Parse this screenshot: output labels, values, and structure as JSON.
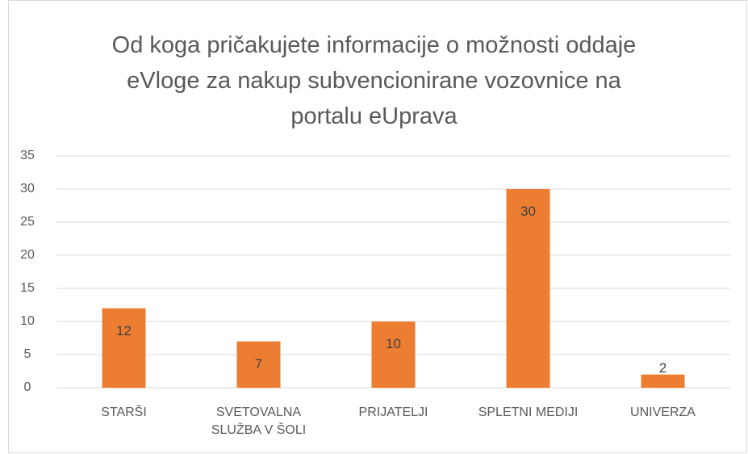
{
  "chart_data": {
    "type": "bar",
    "title": "Od koga pričakujete informacije o možnosti oddaje eVloge za nakup subvencionirane vozovnice na portalu eUprava",
    "categories": [
      "STARŠI",
      "SVETOVALNA SLUŽBA V ŠOLI",
      "PRIJATELJI",
      "SPLETNI MEDIJI",
      "UNIVERZA"
    ],
    "values": [
      12,
      7,
      10,
      30,
      2
    ],
    "color": "#ed7d31",
    "ylim": [
      0,
      35
    ],
    "yticks": [
      0,
      5,
      10,
      15,
      20,
      25,
      30,
      35
    ],
    "grid": true
  }
}
